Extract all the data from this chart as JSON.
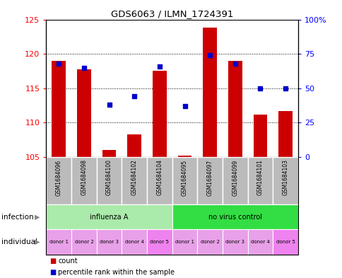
{
  "title": "GDS6063 / ILMN_1724391",
  "samples": [
    "GSM1684096",
    "GSM1684098",
    "GSM1684100",
    "GSM1684102",
    "GSM1684104",
    "GSM1684095",
    "GSM1684097",
    "GSM1684099",
    "GSM1684101",
    "GSM1684103"
  ],
  "bar_values": [
    119.0,
    117.8,
    106.0,
    108.3,
    117.5,
    105.2,
    123.8,
    119.0,
    111.2,
    111.7
  ],
  "bar_base": 105.0,
  "percentile_values": [
    68,
    65,
    38,
    44,
    66,
    37,
    74,
    68,
    50,
    50
  ],
  "ylim_left": [
    105,
    125
  ],
  "ylim_right": [
    0,
    100
  ],
  "yticks_left": [
    105,
    110,
    115,
    120,
    125
  ],
  "yticks_right": [
    0,
    25,
    50,
    75,
    100
  ],
  "infection_groups": [
    {
      "label": "influenza A",
      "start": 0,
      "end": 5,
      "color": "#AAEAAA"
    },
    {
      "label": "no virus control",
      "start": 5,
      "end": 10,
      "color": "#33DD44"
    }
  ],
  "individual_labels": [
    "donor 1",
    "donor 2",
    "donor 3",
    "donor 4",
    "donor 5",
    "donor 1",
    "donor 2",
    "donor 3",
    "donor 4",
    "donor 5"
  ],
  "individual_colors_alt": [
    "#E8A0E8",
    "#EE82EE"
  ],
  "bar_color": "#CC0000",
  "dot_color": "#0000CC",
  "sample_bg_color": "#BBBBBB",
  "legend_items": [
    {
      "label": "count",
      "color": "#CC0000"
    },
    {
      "label": "percentile rank within the sample",
      "color": "#0000CC"
    }
  ],
  "border_color": "#000000"
}
